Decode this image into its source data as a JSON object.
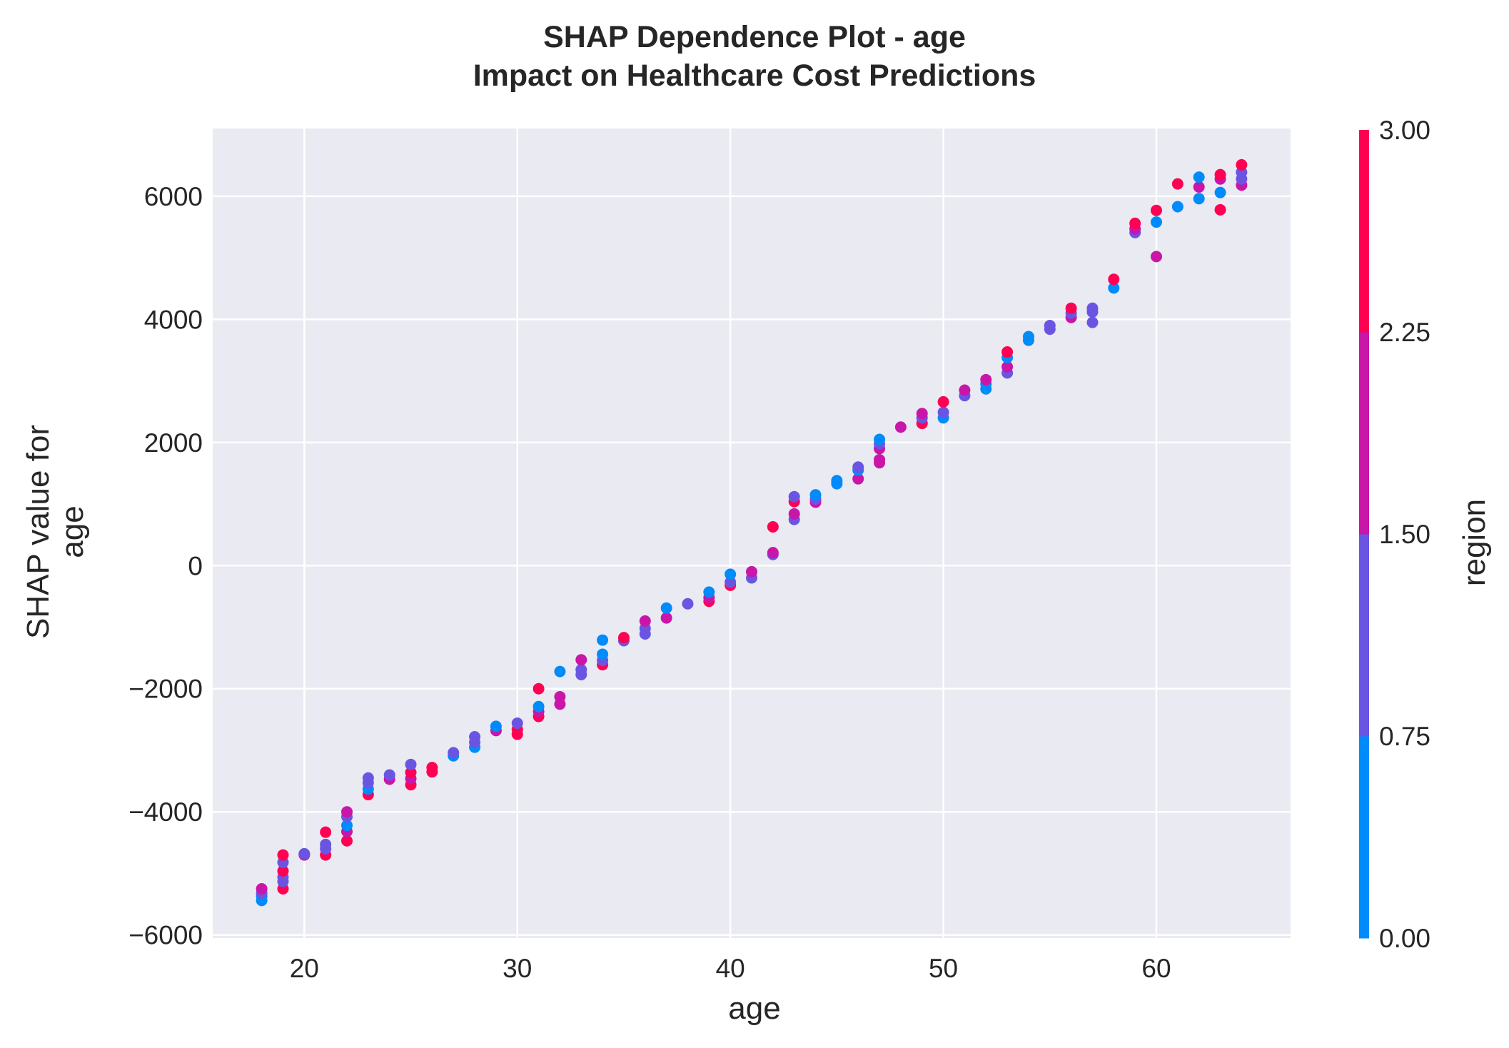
{
  "chart_data": {
    "type": "scatter",
    "title": "SHAP Dependence Plot - age",
    "subtitle": "Impact on Healthcare Cost Predictions",
    "xlabel": "age",
    "ylabel_lines": [
      "SHAP value for",
      "age"
    ],
    "xlim": [
      15.7,
      66.3
    ],
    "ylim": [
      -6050,
      7100
    ],
    "x_ticks": [
      20,
      30,
      40,
      50,
      60
    ],
    "y_ticks": [
      6000,
      4000,
      2000,
      0,
      -2000,
      -4000,
      -6000
    ],
    "y_tick_labels": [
      "6000",
      "4000",
      "2000",
      "0",
      "−2000",
      "−4000",
      "−6000"
    ],
    "grid": true,
    "colorbar": {
      "label": "region",
      "range": [
        0,
        3
      ],
      "ticks": [
        0,
        0.75,
        1.5,
        2.25,
        3
      ],
      "tick_labels": [
        "0.00",
        "0.75",
        "1.50",
        "2.25",
        "3.00"
      ],
      "colors": [
        "#008bfb",
        "#6a55e3",
        "#c915a8",
        "#ff0052"
      ]
    },
    "points": [
      {
        "x": 18,
        "y": -5440,
        "c": 0
      },
      {
        "x": 18,
        "y": -5370,
        "c": 0
      },
      {
        "x": 18,
        "y": -5320,
        "c": 1
      },
      {
        "x": 18,
        "y": -5250,
        "c": 2
      },
      {
        "x": 19,
        "y": -5250,
        "c": 3
      },
      {
        "x": 19,
        "y": -5130,
        "c": 1
      },
      {
        "x": 19,
        "y": -5060,
        "c": 1
      },
      {
        "x": 19,
        "y": -4960,
        "c": 3
      },
      {
        "x": 19,
        "y": -4820,
        "c": 1
      },
      {
        "x": 19,
        "y": -4700,
        "c": 3
      },
      {
        "x": 20,
        "y": -4700,
        "c": 2
      },
      {
        "x": 20,
        "y": -4680,
        "c": 1
      },
      {
        "x": 21,
        "y": -4700,
        "c": 3
      },
      {
        "x": 21,
        "y": -4600,
        "c": 1
      },
      {
        "x": 21,
        "y": -4530,
        "c": 1
      },
      {
        "x": 21,
        "y": -4330,
        "c": 3
      },
      {
        "x": 22,
        "y": -4470,
        "c": 3
      },
      {
        "x": 22,
        "y": -4320,
        "c": 2
      },
      {
        "x": 22,
        "y": -4220,
        "c": 0
      },
      {
        "x": 22,
        "y": -4080,
        "c": 1
      },
      {
        "x": 22,
        "y": -4000,
        "c": 2
      },
      {
        "x": 23,
        "y": -3720,
        "c": 3
      },
      {
        "x": 23,
        "y": -3630,
        "c": 0
      },
      {
        "x": 23,
        "y": -3530,
        "c": 1
      },
      {
        "x": 23,
        "y": -3450,
        "c": 1
      },
      {
        "x": 24,
        "y": -3470,
        "c": 2
      },
      {
        "x": 24,
        "y": -3400,
        "c": 1
      },
      {
        "x": 25,
        "y": -3560,
        "c": 3
      },
      {
        "x": 25,
        "y": -3460,
        "c": 2
      },
      {
        "x": 25,
        "y": -3360,
        "c": 3
      },
      {
        "x": 25,
        "y": -3230,
        "c": 1
      },
      {
        "x": 26,
        "y": -3350,
        "c": 3
      },
      {
        "x": 26,
        "y": -3280,
        "c": 3
      },
      {
        "x": 27,
        "y": -3090,
        "c": 0
      },
      {
        "x": 27,
        "y": -3040,
        "c": 1
      },
      {
        "x": 28,
        "y": -2950,
        "c": 0
      },
      {
        "x": 28,
        "y": -2870,
        "c": 1
      },
      {
        "x": 28,
        "y": -2780,
        "c": 1
      },
      {
        "x": 29,
        "y": -2680,
        "c": 2
      },
      {
        "x": 29,
        "y": -2610,
        "c": 0
      },
      {
        "x": 30,
        "y": -2740,
        "c": 3
      },
      {
        "x": 30,
        "y": -2660,
        "c": 3
      },
      {
        "x": 30,
        "y": -2560,
        "c": 1
      },
      {
        "x": 31,
        "y": -2450,
        "c": 3
      },
      {
        "x": 31,
        "y": -2370,
        "c": 2
      },
      {
        "x": 31,
        "y": -2290,
        "c": 0
      },
      {
        "x": 31,
        "y": -2000,
        "c": 3
      },
      {
        "x": 32,
        "y": -2250,
        "c": 2
      },
      {
        "x": 32,
        "y": -2130,
        "c": 2
      },
      {
        "x": 32,
        "y": -1720,
        "c": 0
      },
      {
        "x": 33,
        "y": -1770,
        "c": 1
      },
      {
        "x": 33,
        "y": -1690,
        "c": 1
      },
      {
        "x": 33,
        "y": -1530,
        "c": 2
      },
      {
        "x": 34,
        "y": -1610,
        "c": 3
      },
      {
        "x": 34,
        "y": -1540,
        "c": 1
      },
      {
        "x": 34,
        "y": -1440,
        "c": 0
      },
      {
        "x": 34,
        "y": -1210,
        "c": 0
      },
      {
        "x": 35,
        "y": -1220,
        "c": 1
      },
      {
        "x": 35,
        "y": -1170,
        "c": 3
      },
      {
        "x": 36,
        "y": -1110,
        "c": 1
      },
      {
        "x": 36,
        "y": -1020,
        "c": 1
      },
      {
        "x": 36,
        "y": -900,
        "c": 2
      },
      {
        "x": 37,
        "y": -850,
        "c": 2
      },
      {
        "x": 37,
        "y": -690,
        "c": 0
      },
      {
        "x": 38,
        "y": -620,
        "c": 1
      },
      {
        "x": 39,
        "y": -580,
        "c": 3
      },
      {
        "x": 39,
        "y": -520,
        "c": 2
      },
      {
        "x": 39,
        "y": -430,
        "c": 0
      },
      {
        "x": 40,
        "y": -320,
        "c": 3
      },
      {
        "x": 40,
        "y": -270,
        "c": 1
      },
      {
        "x": 40,
        "y": -140,
        "c": 0
      },
      {
        "x": 41,
        "y": -200,
        "c": 1
      },
      {
        "x": 41,
        "y": -100,
        "c": 2
      },
      {
        "x": 42,
        "y": 180,
        "c": 1
      },
      {
        "x": 42,
        "y": 210,
        "c": 2
      },
      {
        "x": 42,
        "y": 630,
        "c": 3
      },
      {
        "x": 43,
        "y": 750,
        "c": 1
      },
      {
        "x": 43,
        "y": 840,
        "c": 2
      },
      {
        "x": 43,
        "y": 1040,
        "c": 3
      },
      {
        "x": 43,
        "y": 1120,
        "c": 1
      },
      {
        "x": 44,
        "y": 1030,
        "c": 2
      },
      {
        "x": 44,
        "y": 1080,
        "c": 1
      },
      {
        "x": 44,
        "y": 1150,
        "c": 0
      },
      {
        "x": 45,
        "y": 1330,
        "c": 0
      },
      {
        "x": 45,
        "y": 1380,
        "c": 0
      },
      {
        "x": 46,
        "y": 1410,
        "c": 2
      },
      {
        "x": 46,
        "y": 1550,
        "c": 0
      },
      {
        "x": 46,
        "y": 1600,
        "c": 1
      },
      {
        "x": 47,
        "y": 1670,
        "c": 2
      },
      {
        "x": 47,
        "y": 1720,
        "c": 2
      },
      {
        "x": 47,
        "y": 1900,
        "c": 2
      },
      {
        "x": 47,
        "y": 1980,
        "c": 1
      },
      {
        "x": 47,
        "y": 2050,
        "c": 0
      },
      {
        "x": 48,
        "y": 2250,
        "c": 2
      },
      {
        "x": 49,
        "y": 2310,
        "c": 3
      },
      {
        "x": 49,
        "y": 2400,
        "c": 1
      },
      {
        "x": 49,
        "y": 2470,
        "c": 2
      },
      {
        "x": 50,
        "y": 2400,
        "c": 0
      },
      {
        "x": 50,
        "y": 2490,
        "c": 1
      },
      {
        "x": 50,
        "y": 2660,
        "c": 3
      },
      {
        "x": 51,
        "y": 2760,
        "c": 1
      },
      {
        "x": 51,
        "y": 2850,
        "c": 2
      },
      {
        "x": 52,
        "y": 2870,
        "c": 0
      },
      {
        "x": 52,
        "y": 2950,
        "c": 0
      },
      {
        "x": 52,
        "y": 3020,
        "c": 2
      },
      {
        "x": 53,
        "y": 3130,
        "c": 1
      },
      {
        "x": 53,
        "y": 3230,
        "c": 2
      },
      {
        "x": 53,
        "y": 3380,
        "c": 0
      },
      {
        "x": 53,
        "y": 3470,
        "c": 3
      },
      {
        "x": 54,
        "y": 3660,
        "c": 0
      },
      {
        "x": 54,
        "y": 3720,
        "c": 0
      },
      {
        "x": 55,
        "y": 3840,
        "c": 1
      },
      {
        "x": 55,
        "y": 3900,
        "c": 1
      },
      {
        "x": 56,
        "y": 4030,
        "c": 2
      },
      {
        "x": 56,
        "y": 4100,
        "c": 1
      },
      {
        "x": 56,
        "y": 4180,
        "c": 3
      },
      {
        "x": 57,
        "y": 3950,
        "c": 1
      },
      {
        "x": 57,
        "y": 4120,
        "c": 1
      },
      {
        "x": 57,
        "y": 4180,
        "c": 1
      },
      {
        "x": 58,
        "y": 4510,
        "c": 0
      },
      {
        "x": 58,
        "y": 4650,
        "c": 3
      },
      {
        "x": 59,
        "y": 5410,
        "c": 1
      },
      {
        "x": 59,
        "y": 5470,
        "c": 2
      },
      {
        "x": 59,
        "y": 5560,
        "c": 3
      },
      {
        "x": 60,
        "y": 5020,
        "c": 2
      },
      {
        "x": 60,
        "y": 5580,
        "c": 0
      },
      {
        "x": 60,
        "y": 5770,
        "c": 3
      },
      {
        "x": 61,
        "y": 5830,
        "c": 0
      },
      {
        "x": 61,
        "y": 6200,
        "c": 3
      },
      {
        "x": 62,
        "y": 5960,
        "c": 0
      },
      {
        "x": 62,
        "y": 6150,
        "c": 2
      },
      {
        "x": 62,
        "y": 6310,
        "c": 0
      },
      {
        "x": 63,
        "y": 5780,
        "c": 3
      },
      {
        "x": 63,
        "y": 6060,
        "c": 0
      },
      {
        "x": 63,
        "y": 6280,
        "c": 2
      },
      {
        "x": 63,
        "y": 6350,
        "c": 3
      },
      {
        "x": 64,
        "y": 6180,
        "c": 2
      },
      {
        "x": 64,
        "y": 6280,
        "c": 1
      },
      {
        "x": 64,
        "y": 6390,
        "c": 1
      },
      {
        "x": 64,
        "y": 6510,
        "c": 3
      }
    ]
  }
}
